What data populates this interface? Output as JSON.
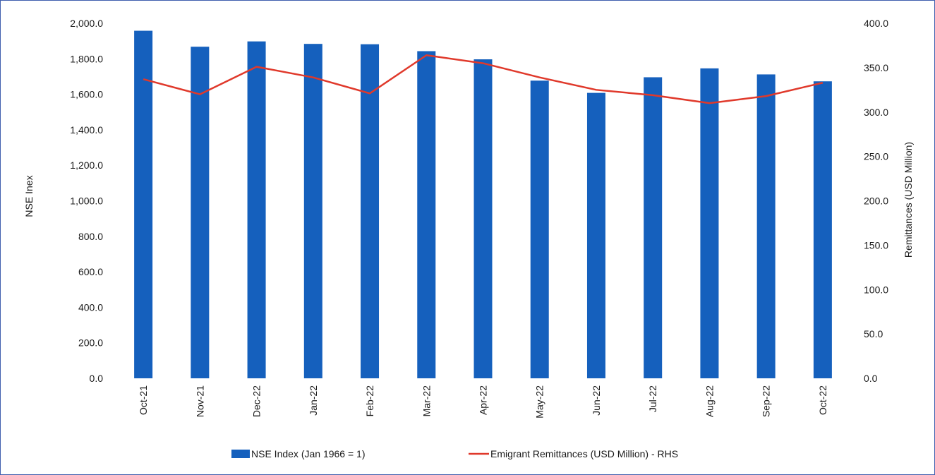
{
  "chart_data": {
    "type": "bar",
    "categories": [
      "Oct-21",
      "Nov-21",
      "Dec-22",
      "Jan-22",
      "Feb-22",
      "Mar-22",
      "Apr-22",
      "May-22",
      "Jun-22",
      "Jul-22",
      "Aug-22",
      "Sep-22",
      "Oct-22"
    ],
    "series": [
      {
        "name": "NSE Index (Jan 1966 = 1)",
        "type": "bar",
        "axis": "left",
        "color": "#1560bd",
        "values": [
          1958,
          1868,
          1898,
          1884,
          1882,
          1843,
          1797,
          1677,
          1608,
          1696,
          1746,
          1712,
          1673
        ]
      },
      {
        "name": "Emigrant Remittances (USD Million) - RHS",
        "type": "line",
        "axis": "right",
        "color": "#e0392b",
        "values": [
          337,
          320,
          351,
          339,
          321,
          364,
          355,
          339,
          325,
          319,
          310,
          318,
          333
        ]
      }
    ],
    "ylabel": "NSE Inex",
    "y2label": "Remittances (USD Million)",
    "ylim": [
      0,
      2000
    ],
    "y2lim": [
      0,
      400
    ],
    "yticks": [
      "0.0",
      "200.0",
      "400.0",
      "600.0",
      "800.0",
      "1,000.0",
      "1,200.0",
      "1,400.0",
      "1,600.0",
      "1,800.0",
      "2,000.0"
    ],
    "y2ticks": [
      "0.0",
      "50.0",
      "100.0",
      "150.0",
      "200.0",
      "250.0",
      "300.0",
      "350.0",
      "400.0"
    ],
    "grid": false,
    "legend_position": "bottom"
  }
}
